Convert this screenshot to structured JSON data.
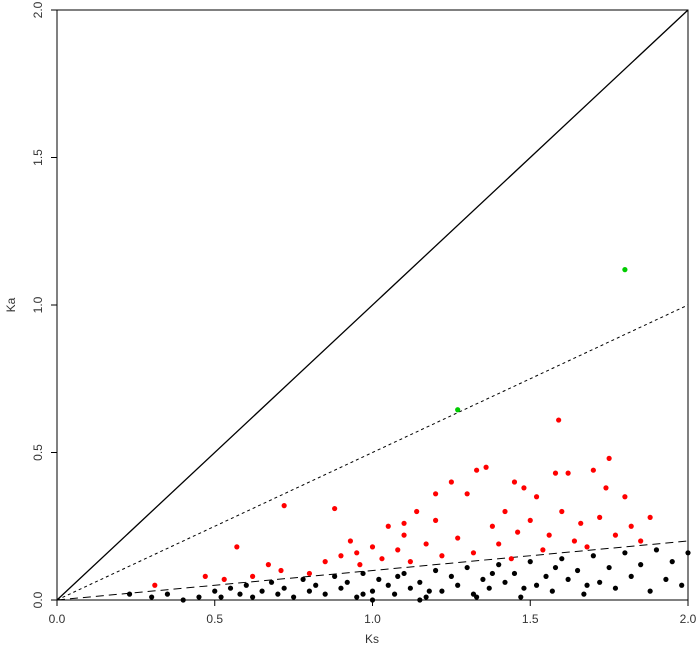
{
  "chart_data": {
    "type": "scatter",
    "x_label": "Ks",
    "y_label": "Ka",
    "xlim": [
      0,
      2
    ],
    "ylim": [
      0,
      2
    ],
    "xticks": [
      {
        "value": 0,
        "label": "0.0"
      },
      {
        "value": 0.5,
        "label": "0.5"
      },
      {
        "value": 1,
        "label": "1.0"
      },
      {
        "value": 1.5,
        "label": "1.5"
      },
      {
        "value": 2,
        "label": "2.0"
      }
    ],
    "yticks": [
      {
        "value": 0,
        "label": "0.0"
      },
      {
        "value": 0.5,
        "label": "0.5"
      },
      {
        "value": 1,
        "label": "1.0"
      },
      {
        "value": 1.5,
        "label": "1.5"
      },
      {
        "value": 2,
        "label": "2.0"
      }
    ],
    "reference_lines": [
      {
        "slope": 1,
        "style": "solid"
      },
      {
        "slope": 0.5,
        "style": "dotted"
      },
      {
        "slope": 0.1,
        "style": "dashed"
      }
    ],
    "series": [
      {
        "color": "#000000",
        "x": [
          0.23,
          0.3,
          0.35,
          0.4,
          0.45,
          0.5,
          0.52,
          0.55,
          0.58,
          0.6,
          0.62,
          0.65,
          0.68,
          0.7,
          0.72,
          0.75,
          0.78,
          0.8,
          0.82,
          0.85,
          0.88,
          0.9,
          0.92,
          0.95,
          0.97,
          1.0,
          1.02,
          1.05,
          1.07,
          1.1,
          1.12,
          1.15,
          1.17,
          1.2,
          1.22,
          1.25,
          1.27,
          1.3,
          1.32,
          1.35,
          1.37,
          1.4,
          1.42,
          1.45,
          1.47,
          1.5,
          1.52,
          1.55,
          1.57,
          1.6,
          1.62,
          1.65,
          1.67,
          1.7,
          1.72,
          1.75,
          1.77,
          1.8,
          1.82,
          1.85,
          1.88,
          1.9,
          1.93,
          1.95,
          1.98,
          2.0,
          1.0,
          1.15,
          1.33,
          0.97,
          1.08,
          1.18,
          1.38,
          1.58,
          1.68,
          1.48
        ],
        "y": [
          0.02,
          0.01,
          0.02,
          0.0,
          0.01,
          0.03,
          0.01,
          0.04,
          0.02,
          0.05,
          0.01,
          0.03,
          0.06,
          0.02,
          0.04,
          0.01,
          0.07,
          0.03,
          0.05,
          0.02,
          0.08,
          0.04,
          0.06,
          0.01,
          0.09,
          0.03,
          0.07,
          0.05,
          0.02,
          0.09,
          0.04,
          0.06,
          0.01,
          0.1,
          0.03,
          0.08,
          0.05,
          0.11,
          0.02,
          0.07,
          0.04,
          0.12,
          0.06,
          0.09,
          0.01,
          0.13,
          0.05,
          0.08,
          0.03,
          0.14,
          0.07,
          0.1,
          0.02,
          0.15,
          0.06,
          0.11,
          0.04,
          0.16,
          0.08,
          0.12,
          0.03,
          0.17,
          0.07,
          0.13,
          0.05,
          0.16,
          0.0,
          0.0,
          0.01,
          0.02,
          0.08,
          0.03,
          0.09,
          0.11,
          0.05,
          0.04
        ]
      },
      {
        "color": "#ff0000",
        "x": [
          0.31,
          0.47,
          0.53,
          0.57,
          0.62,
          0.67,
          0.71,
          0.72,
          0.8,
          0.85,
          0.88,
          0.9,
          0.93,
          0.96,
          1.0,
          1.03,
          1.05,
          1.08,
          1.1,
          1.12,
          1.14,
          1.17,
          1.2,
          1.22,
          1.25,
          1.27,
          1.3,
          1.32,
          1.33,
          1.36,
          1.38,
          1.4,
          1.42,
          1.44,
          1.46,
          1.48,
          1.5,
          1.52,
          1.54,
          1.56,
          1.59,
          1.6,
          1.62,
          1.64,
          1.66,
          1.68,
          1.7,
          1.72,
          1.74,
          1.75,
          1.77,
          1.8,
          1.82,
          1.85,
          1.88,
          1.58,
          1.45,
          1.1,
          1.2,
          0.95
        ],
        "y": [
          0.05,
          0.08,
          0.07,
          0.18,
          0.08,
          0.12,
          0.1,
          0.32,
          0.09,
          0.13,
          0.31,
          0.15,
          0.2,
          0.12,
          0.18,
          0.14,
          0.25,
          0.17,
          0.22,
          0.13,
          0.3,
          0.19,
          0.27,
          0.15,
          0.4,
          0.21,
          0.36,
          0.16,
          0.44,
          0.45,
          0.25,
          0.19,
          0.3,
          0.14,
          0.23,
          0.38,
          0.27,
          0.35,
          0.17,
          0.22,
          0.61,
          0.3,
          0.43,
          0.2,
          0.26,
          0.18,
          0.44,
          0.28,
          0.38,
          0.48,
          0.22,
          0.35,
          0.25,
          0.2,
          0.28,
          0.43,
          0.4,
          0.26,
          0.36,
          0.16
        ]
      },
      {
        "color": "#00cc00",
        "x": [
          1.27,
          1.8
        ],
        "y": [
          0.645,
          1.12
        ]
      }
    ]
  }
}
